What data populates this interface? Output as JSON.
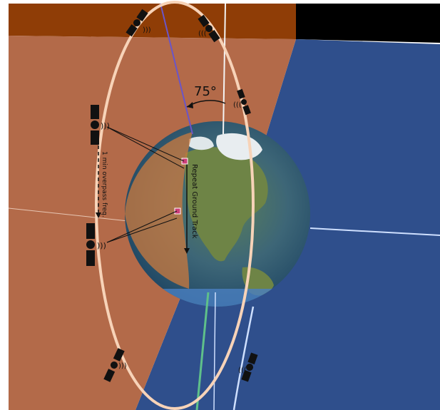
{
  "diagram": {
    "inclination_label": "75°",
    "overpass_label": "1 min overpass freq.",
    "ground_track_label": "Repeat Ground Track",
    "colors": {
      "background_dark": "#000000",
      "top_plane": "#8f3d06",
      "orbital_plane": "#b36a49",
      "equatorial_plane": "#2f4f8c",
      "earth_ocean": "#2e5f7d",
      "earth_land": "#5f7a3a",
      "orbit_ring": "#f7d3b8",
      "axis_line": "#6a55c8",
      "target_marker": "#cc3f7a"
    },
    "icons": [
      "satellite-icon",
      "signal-waves-icon",
      "ground-target-icon"
    ]
  }
}
